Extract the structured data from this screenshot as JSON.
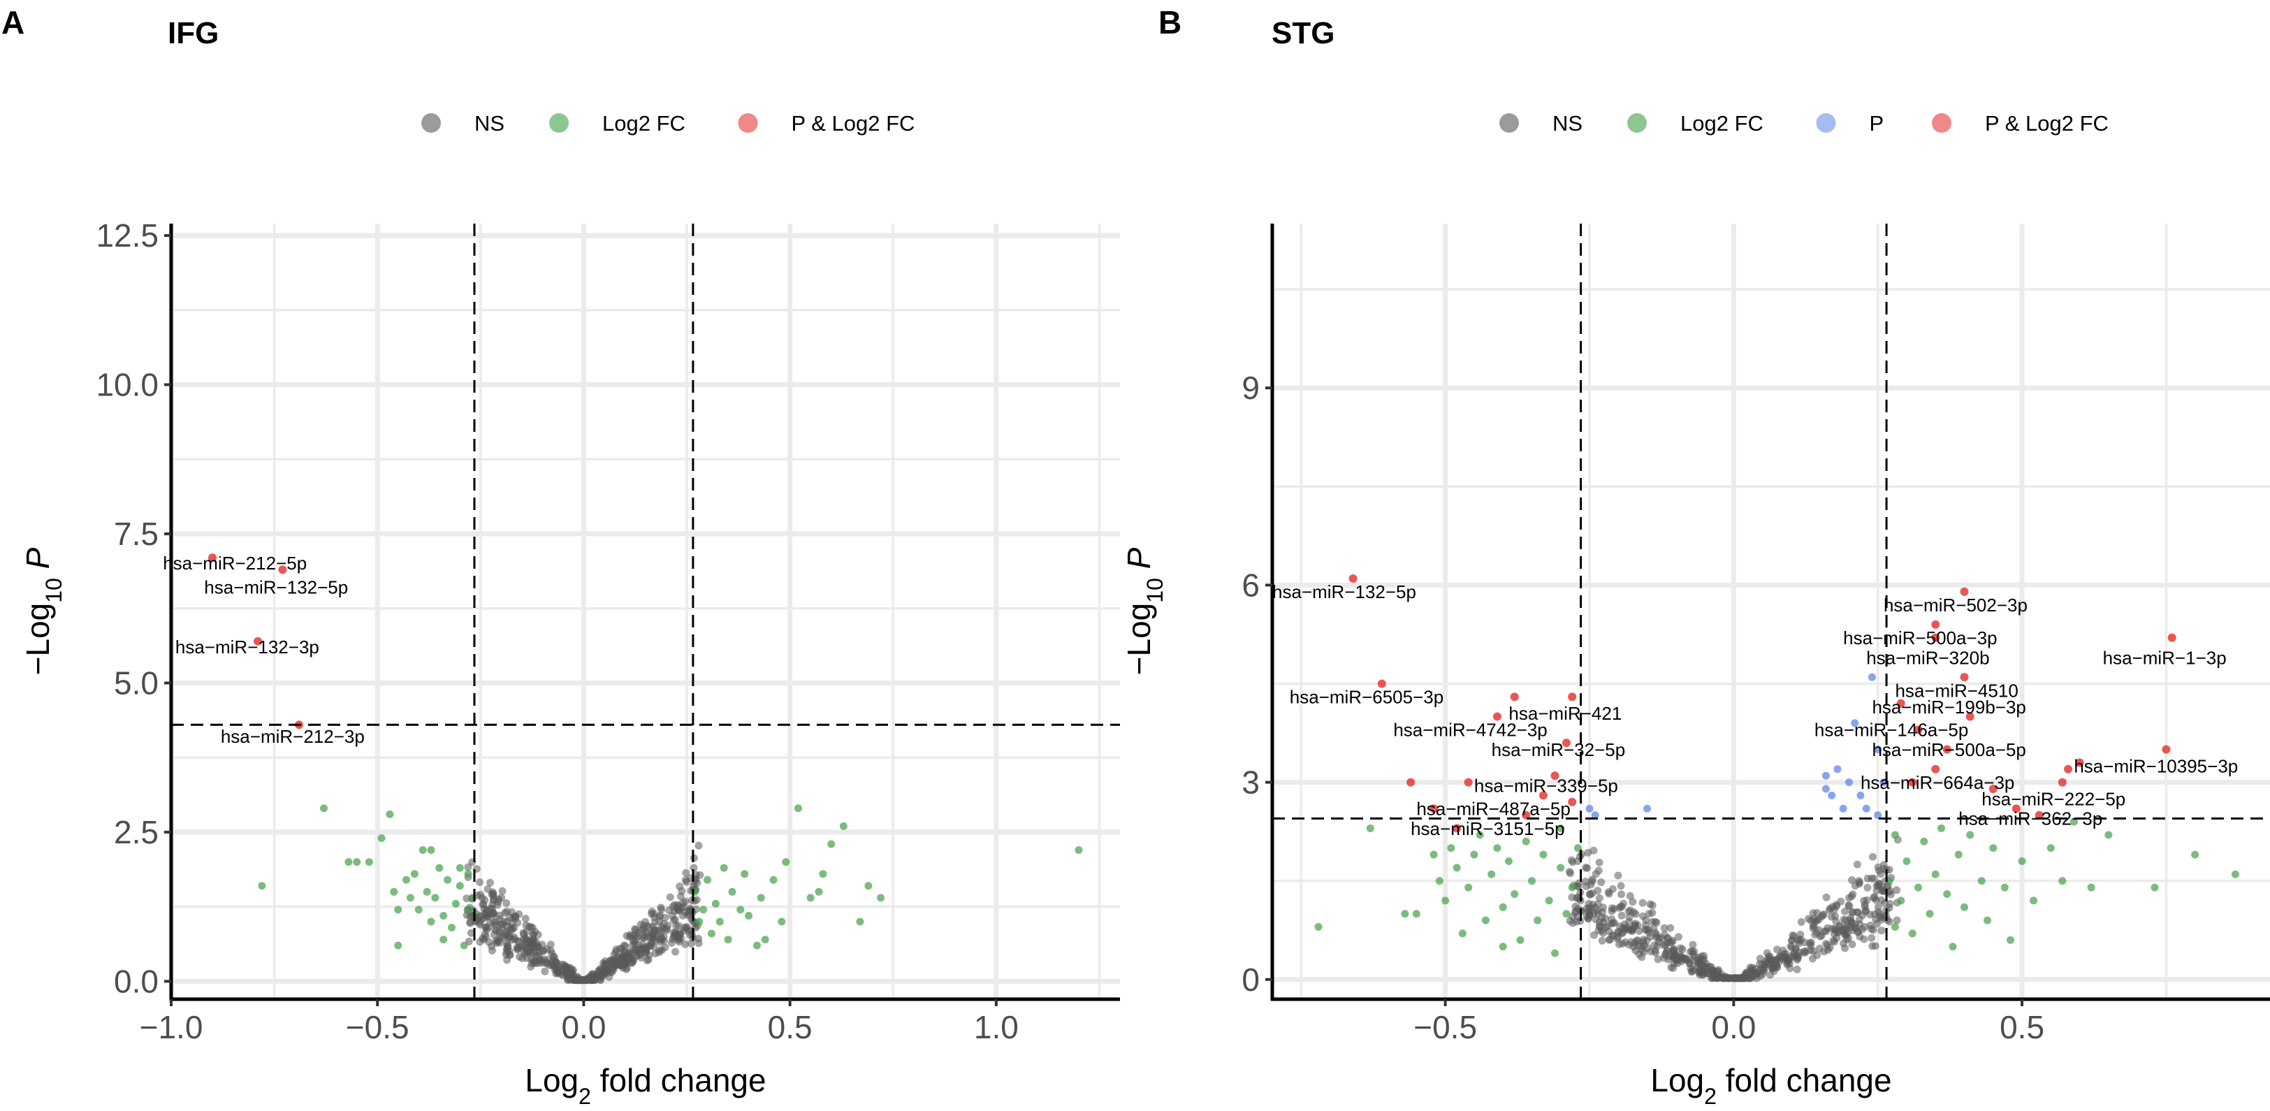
{
  "colors": {
    "NS": "#595959",
    "Log2 FC": "#43a047",
    "P": "#6b8de8",
    "P & Log2 FC": "#e53935"
  },
  "chart_data": [
    {
      "type": "scatter",
      "panel": "A",
      "title": "IFG",
      "xlabel": "Log2 fold change",
      "ylabel": "-Log10 P",
      "xlim": [
        -1.0,
        1.3
      ],
      "ylim": [
        -0.3,
        12.7
      ],
      "xticks": [
        -1.0,
        -0.5,
        0.0,
        0.5,
        1.0
      ],
      "xtick_labels": [
        "−1.0",
        "−0.5",
        "0.0",
        "0.5",
        "1.0"
      ],
      "yticks": [
        0,
        2.5,
        5,
        7.5,
        10,
        12.5
      ],
      "ytick_labels": [
        "0.0",
        "2.5",
        "5.0",
        "7.5",
        "10.0",
        "12.5"
      ],
      "vlines": [
        -0.265,
        0.265
      ],
      "hline": 4.3,
      "legend": [
        "NS",
        "Log2 FC",
        "P & Log2 FC"
      ],
      "labeled_points": [
        {
          "x": -0.9,
          "y": 7.1,
          "label": "hsa−miR−212−5p",
          "tx": -1.02,
          "ty": 6.9,
          "anchor": "start"
        },
        {
          "x": -0.73,
          "y": 6.9,
          "label": "hsa−miR−132−5p",
          "tx": -0.92,
          "ty": 6.5,
          "anchor": "start"
        },
        {
          "x": -0.79,
          "y": 5.7,
          "label": "hsa−miR−132−3p",
          "tx": -0.99,
          "ty": 5.5,
          "anchor": "start"
        },
        {
          "x": -0.69,
          "y": 4.3,
          "label": "hsa−miR−212−3p",
          "tx": -0.88,
          "ty": 4.0,
          "anchor": "start"
        }
      ],
      "log2fc_points": [
        [
          -0.78,
          1.6
        ],
        [
          -0.63,
          2.9
        ],
        [
          -0.57,
          2.0
        ],
        [
          -0.55,
          2.0
        ],
        [
          -0.52,
          2.0
        ],
        [
          -0.49,
          2.4
        ],
        [
          -0.47,
          2.8
        ],
        [
          -0.46,
          1.5
        ],
        [
          -0.45,
          1.2
        ],
        [
          -0.45,
          0.6
        ],
        [
          -0.43,
          1.7
        ],
        [
          -0.42,
          1.4
        ],
        [
          -0.41,
          1.8
        ],
        [
          -0.4,
          1.2
        ],
        [
          -0.39,
          2.2
        ],
        [
          -0.38,
          1.5
        ],
        [
          -0.37,
          1.0
        ],
        [
          -0.37,
          2.2
        ],
        [
          -0.36,
          1.4
        ],
        [
          -0.35,
          1.9
        ],
        [
          -0.34,
          1.1
        ],
        [
          -0.34,
          0.7
        ],
        [
          -0.33,
          1.7
        ],
        [
          -0.32,
          0.9
        ],
        [
          -0.31,
          1.3
        ],
        [
          -0.3,
          1.9
        ],
        [
          -0.3,
          1.6
        ],
        [
          -0.29,
          0.6
        ],
        [
          -0.28,
          1.2
        ],
        [
          -0.28,
          1.8
        ],
        [
          -0.27,
          1.4
        ],
        [
          0.27,
          1.5
        ],
        [
          0.28,
          1.0
        ],
        [
          0.29,
          1.2
        ],
        [
          0.3,
          1.7
        ],
        [
          0.31,
          0.8
        ],
        [
          0.32,
          1.3
        ],
        [
          0.33,
          1.0
        ],
        [
          0.34,
          1.9
        ],
        [
          0.35,
          0.7
        ],
        [
          0.36,
          1.5
        ],
        [
          0.38,
          1.2
        ],
        [
          0.39,
          1.8
        ],
        [
          0.4,
          1.1
        ],
        [
          0.42,
          0.6
        ],
        [
          0.43,
          1.4
        ],
        [
          0.44,
          0.7
        ],
        [
          0.46,
          1.7
        ],
        [
          0.48,
          1.0
        ],
        [
          0.49,
          2.0
        ],
        [
          0.52,
          2.9
        ],
        [
          0.55,
          1.4
        ],
        [
          0.57,
          1.5
        ],
        [
          0.58,
          1.8
        ],
        [
          0.6,
          2.3
        ],
        [
          0.63,
          2.6
        ],
        [
          0.67,
          1.0
        ],
        [
          0.69,
          1.6
        ],
        [
          0.72,
          1.4
        ],
        [
          1.2,
          2.2
        ]
      ]
    },
    {
      "type": "scatter",
      "panel": "B",
      "title": "STG",
      "xlabel": "Log2 fold change",
      "ylabel": "-Log10 P",
      "xlim": [
        -0.8,
        0.93
      ],
      "ylim": [
        -0.3,
        11.5
      ],
      "xticks": [
        -0.5,
        0.0,
        0.5
      ],
      "xtick_labels": [
        "−0.5",
        "0.0",
        "0.5"
      ],
      "yticks": [
        0,
        3,
        6,
        9
      ],
      "ytick_labels": [
        "0",
        "3",
        "6",
        "9"
      ],
      "vlines": [
        -0.265,
        0.265
      ],
      "hline": 2.45,
      "legend": [
        "NS",
        "Log2 FC",
        "P",
        "P & Log2 FC"
      ],
      "labeled_points": [
        {
          "x": -0.66,
          "y": 6.1,
          "label": "hsa−miR−132−5p",
          "tx": -0.8,
          "ty": 5.8,
          "anchor": "start"
        },
        {
          "x": -0.61,
          "y": 4.5,
          "label": "hsa−miR−6505−3p",
          "tx": -0.77,
          "ty": 4.2,
          "anchor": "start"
        },
        {
          "x": -0.41,
          "y": 4.0,
          "label": "hsa−miR−4742−3p",
          "tx": -0.59,
          "ty": 3.7,
          "anchor": "start"
        },
        {
          "x": -0.28,
          "y": 4.3,
          "label": "hsa−miR−421",
          "tx": -0.39,
          "ty": 3.95,
          "anchor": "start"
        },
        {
          "x": -0.29,
          "y": 3.6,
          "label": "hsa−miR−32−5p",
          "tx": -0.42,
          "ty": 3.4,
          "anchor": "start"
        },
        {
          "x": -0.31,
          "y": 3.1,
          "label": "hsa−miR−339−5p",
          "tx": -0.45,
          "ty": 2.85,
          "anchor": "start"
        },
        {
          "x": -0.46,
          "y": 3.0,
          "label": "hsa−miR−487a−5p",
          "tx": -0.55,
          "ty": 2.5,
          "anchor": "start"
        },
        {
          "x": -0.36,
          "y": 2.5,
          "label": "hsa−miR−3151−5p",
          "tx": -0.56,
          "ty": 2.2,
          "anchor": "start"
        },
        {
          "x": 0.4,
          "y": 5.9,
          "label": "hsa−miR−502−3p",
          "tx": 0.26,
          "ty": 5.6,
          "anchor": "start"
        },
        {
          "x": 0.35,
          "y": 5.4,
          "label": "hsa−miR−500a−3p",
          "tx": 0.19,
          "ty": 5.1,
          "anchor": "start"
        },
        {
          "x": 0.35,
          "y": 5.2,
          "label": "hsa−miR−320b",
          "tx": 0.23,
          "ty": 4.8,
          "anchor": "start"
        },
        {
          "x": 0.76,
          "y": 5.2,
          "label": "hsa−miR−1−3p",
          "tx": 0.64,
          "ty": 4.8,
          "anchor": "start"
        },
        {
          "x": 0.4,
          "y": 4.6,
          "label": "hsa−miR−4510",
          "tx": 0.28,
          "ty": 4.3,
          "anchor": "start"
        },
        {
          "x": 0.41,
          "y": 4.0,
          "label": "hsa−miR−199b−3p",
          "tx": 0.24,
          "ty": 4.05,
          "anchor": "start"
        },
        {
          "x": 0.37,
          "y": 3.5,
          "label": "hsa−miR−146a−5p",
          "tx": 0.14,
          "ty": 3.7,
          "anchor": "start"
        },
        {
          "x": 0.35,
          "y": 3.2,
          "label": "hsa−miR−500a−5p",
          "tx": 0.24,
          "ty": 3.4,
          "anchor": "start"
        },
        {
          "x": 0.75,
          "y": 3.5,
          "label": "hsa−miR−10395−3p",
          "tx": 0.59,
          "ty": 3.15,
          "anchor": "start"
        },
        {
          "x": 0.31,
          "y": 3.0,
          "label": "hsa−miR−664a−3p",
          "tx": 0.22,
          "ty": 2.9,
          "anchor": "start"
        },
        {
          "x": 0.57,
          "y": 3.0,
          "label": "hsa−miR−222−5p",
          "tx": 0.43,
          "ty": 2.65,
          "anchor": "start"
        },
        {
          "x": 0.49,
          "y": 2.6,
          "label": "hsa−miR−362−3p",
          "tx": 0.39,
          "ty": 2.35,
          "anchor": "start"
        }
      ],
      "extra_red_points": [
        [
          -0.56,
          3.0
        ],
        [
          -0.52,
          2.6
        ],
        [
          -0.48,
          2.3
        ],
        [
          -0.38,
          4.3
        ],
        [
          -0.33,
          2.8
        ],
        [
          -0.28,
          2.7
        ],
        [
          0.29,
          4.2
        ],
        [
          0.32,
          3.8
        ],
        [
          0.45,
          2.9
        ],
        [
          0.58,
          3.2
        ],
        [
          0.6,
          3.3
        ],
        [
          0.53,
          2.5
        ]
      ],
      "p_points": [
        [
          -0.25,
          2.6
        ],
        [
          -0.24,
          2.5
        ],
        [
          -0.15,
          2.6
        ],
        [
          0.16,
          2.9
        ],
        [
          0.16,
          3.1
        ],
        [
          0.17,
          2.8
        ],
        [
          0.18,
          3.2
        ],
        [
          0.19,
          2.6
        ],
        [
          0.2,
          3.0
        ],
        [
          0.21,
          3.9
        ],
        [
          0.22,
          2.8
        ],
        [
          0.23,
          2.6
        ],
        [
          0.24,
          4.6
        ],
        [
          0.25,
          3.5
        ],
        [
          0.26,
          3.0
        ],
        [
          0.25,
          2.5
        ]
      ],
      "log2fc_points": [
        [
          -0.72,
          0.8
        ],
        [
          -0.63,
          2.3
        ],
        [
          -0.57,
          1.0
        ],
        [
          -0.55,
          1.0
        ],
        [
          -0.52,
          1.9
        ],
        [
          -0.51,
          1.5
        ],
        [
          -0.5,
          1.2
        ],
        [
          -0.49,
          2.0
        ],
        [
          -0.48,
          1.7
        ],
        [
          -0.47,
          0.7
        ],
        [
          -0.46,
          1.4
        ],
        [
          -0.45,
          1.9
        ],
        [
          -0.44,
          2.2
        ],
        [
          -0.43,
          0.9
        ],
        [
          -0.42,
          1.6
        ],
        [
          -0.41,
          2.0
        ],
        [
          -0.4,
          1.1
        ],
        [
          -0.4,
          0.5
        ],
        [
          -0.39,
          1.8
        ],
        [
          -0.38,
          1.3
        ],
        [
          -0.37,
          0.6
        ],
        [
          -0.36,
          2.1
        ],
        [
          -0.35,
          1.5
        ],
        [
          -0.34,
          0.9
        ],
        [
          -0.33,
          1.9
        ],
        [
          -0.32,
          1.2
        ],
        [
          -0.31,
          0.4
        ],
        [
          -0.3,
          1.7
        ],
        [
          -0.3,
          2.3
        ],
        [
          -0.29,
          1.0
        ],
        [
          -0.28,
          1.4
        ],
        [
          -0.27,
          2.0
        ],
        [
          0.27,
          1.5
        ],
        [
          0.28,
          0.8
        ],
        [
          0.28,
          2.2
        ],
        [
          0.29,
          1.2
        ],
        [
          0.3,
          1.8
        ],
        [
          0.31,
          0.7
        ],
        [
          0.32,
          1.4
        ],
        [
          0.33,
          2.1
        ],
        [
          0.34,
          1.0
        ],
        [
          0.35,
          1.6
        ],
        [
          0.36,
          2.3
        ],
        [
          0.37,
          1.3
        ],
        [
          0.38,
          0.5
        ],
        [
          0.39,
          1.9
        ],
        [
          0.4,
          1.1
        ],
        [
          0.41,
          2.2
        ],
        [
          0.43,
          1.5
        ],
        [
          0.44,
          0.9
        ],
        [
          0.45,
          2.0
        ],
        [
          0.47,
          1.4
        ],
        [
          0.48,
          0.6
        ],
        [
          0.5,
          1.8
        ],
        [
          0.52,
          1.2
        ],
        [
          0.55,
          2.0
        ],
        [
          0.57,
          1.5
        ],
        [
          0.59,
          2.4
        ],
        [
          0.62,
          1.4
        ],
        [
          0.65,
          2.2
        ],
        [
          0.73,
          1.4
        ],
        [
          0.8,
          1.9
        ],
        [
          0.87,
          1.6
        ]
      ]
    }
  ]
}
